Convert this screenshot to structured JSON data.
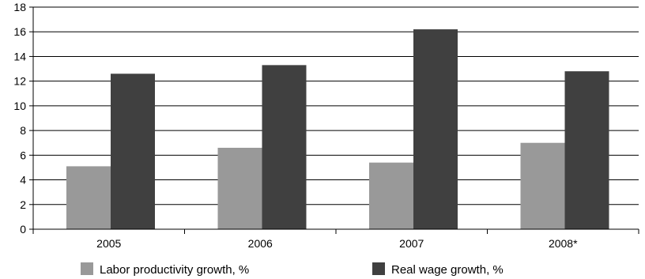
{
  "chart_data": {
    "type": "bar",
    "categories": [
      "2005",
      "2006",
      "2007",
      "2008*"
    ],
    "series": [
      {
        "name": "Labor productivity growth, %",
        "values": [
          5.1,
          6.6,
          5.4,
          7.0
        ],
        "color": "#999999"
      },
      {
        "name": "Real wage growth, %",
        "values": [
          12.6,
          13.3,
          16.2,
          12.8
        ],
        "color": "#404040"
      }
    ],
    "ylim": [
      0,
      18
    ],
    "yticks": [
      0,
      2,
      4,
      6,
      8,
      10,
      12,
      14,
      16,
      18
    ],
    "grid": true,
    "legend_position": "bottom"
  }
}
